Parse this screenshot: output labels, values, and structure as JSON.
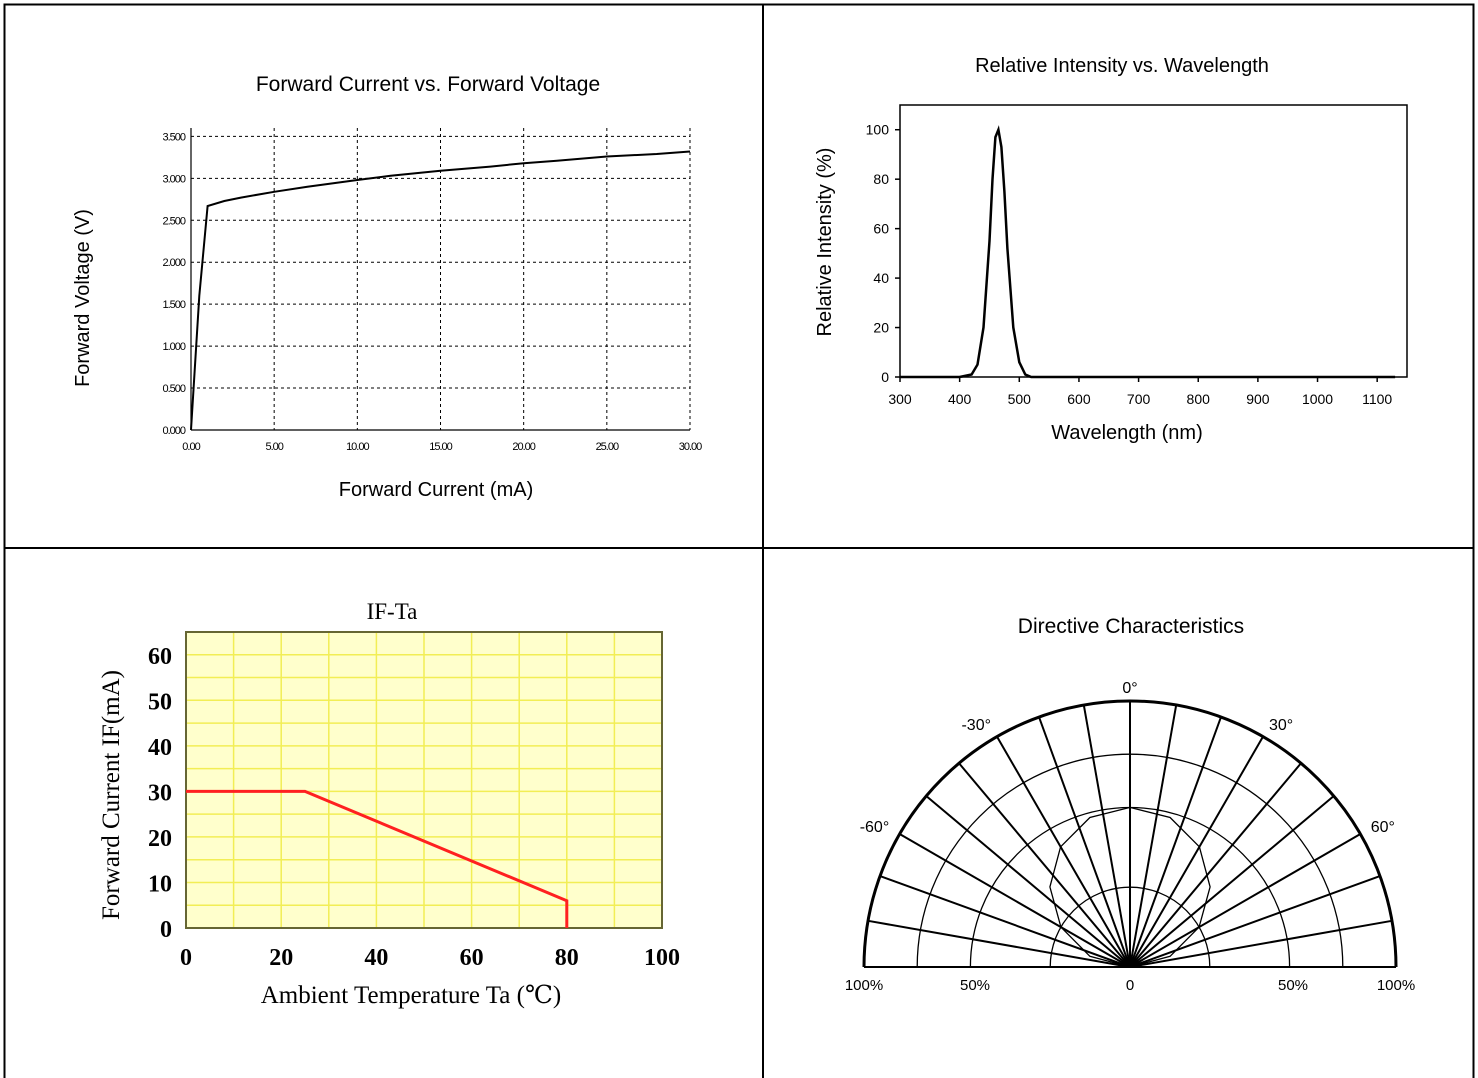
{
  "chart_data": [
    {
      "type": "line",
      "title": "Forward Current vs. Forward Voltage",
      "xlabel": "Forward Current (mA)",
      "ylabel": "Forward Voltage (V)",
      "xlim": [
        0,
        30
      ],
      "ylim": [
        0,
        3.6
      ],
      "x_ticks": [
        0,
        5,
        10,
        15,
        20,
        25,
        30
      ],
      "x_tick_labels": [
        "0.00",
        "5.00",
        "10.00",
        "15.00",
        "20.00",
        "25.00",
        "30.00"
      ],
      "y_ticks": [
        0,
        0.5,
        1.0,
        1.5,
        2.0,
        2.5,
        3.0,
        3.5
      ],
      "y_tick_labels": [
        "0.000",
        "0.500",
        "1.000",
        "1.500",
        "2.000",
        "2.500",
        "3.000",
        "3.500"
      ],
      "grid": true,
      "color": "#000000",
      "x": [
        0,
        0.5,
        1.0,
        2,
        3,
        5,
        7,
        10,
        12,
        15,
        18,
        20,
        22,
        25,
        28,
        30
      ],
      "y": [
        0.0,
        1.6,
        2.67,
        2.73,
        2.77,
        2.84,
        2.9,
        2.98,
        3.03,
        3.09,
        3.14,
        3.18,
        3.21,
        3.26,
        3.29,
        3.32
      ]
    },
    {
      "type": "line",
      "title": "Relative Intensity vs. Wavelength",
      "xlabel": "Wavelength (nm)",
      "ylabel": "Relative Intensity (%)",
      "xlim": [
        300,
        1150
      ],
      "ylim": [
        0,
        110
      ],
      "x_ticks": [
        300,
        400,
        500,
        600,
        700,
        800,
        900,
        1000,
        1100
      ],
      "x_tick_labels": [
        "300",
        "400",
        "500",
        "600",
        "700",
        "800",
        "900",
        "1000",
        "1100"
      ],
      "y_ticks": [
        0,
        20,
        40,
        60,
        80,
        100
      ],
      "y_tick_labels": [
        "0",
        "20",
        "40",
        "60",
        "80",
        "100"
      ],
      "grid": false,
      "color": "#000000",
      "x": [
        300,
        400,
        420,
        430,
        440,
        450,
        455,
        460,
        465,
        470,
        475,
        480,
        490,
        500,
        510,
        520,
        1130
      ],
      "y": [
        0,
        0,
        1,
        5,
        20,
        55,
        80,
        97,
        100,
        93,
        75,
        52,
        20,
        6,
        1,
        0,
        0
      ]
    },
    {
      "type": "line",
      "title": "IF-Ta",
      "xlabel": "Ambient Temperature Ta (℃)",
      "ylabel": "Forward Current IF(mA)",
      "xlim": [
        0,
        100
      ],
      "ylim": [
        0,
        65
      ],
      "x_ticks": [
        0,
        20,
        40,
        60,
        80,
        100
      ],
      "x_tick_labels": [
        "0",
        "20",
        "40",
        "60",
        "80",
        "100"
      ],
      "y_ticks": [
        0,
        10,
        20,
        30,
        40,
        50,
        60
      ],
      "y_tick_labels": [
        "0",
        "10",
        "20",
        "30",
        "40",
        "50",
        "60"
      ],
      "grid": true,
      "background": "#ffffcc",
      "grid_color": "#f2ee55",
      "color": "#ff2020",
      "x": [
        0,
        25,
        80,
        80
      ],
      "y": [
        30,
        30,
        6,
        0
      ]
    },
    {
      "type": "polar",
      "title": "Directive Characteristics",
      "angle_labels": [
        {
          "angle": -60,
          "label": "-60°"
        },
        {
          "angle": -30,
          "label": "-30°"
        },
        {
          "angle": 0,
          "label": "0°"
        },
        {
          "angle": 30,
          "label": "30°"
        },
        {
          "angle": 60,
          "label": "60°"
        }
      ],
      "radial_labels": [
        "100%",
        "50%",
        "0",
        "50%",
        "100%"
      ],
      "color": "#000000",
      "angles": [
        -90,
        -75,
        -60,
        -45,
        -30,
        -15,
        0,
        15,
        30,
        45,
        60,
        75,
        90
      ],
      "values": [
        0,
        26,
        50,
        71,
        87,
        97,
        100,
        97,
        87,
        71,
        50,
        26,
        0
      ]
    }
  ]
}
